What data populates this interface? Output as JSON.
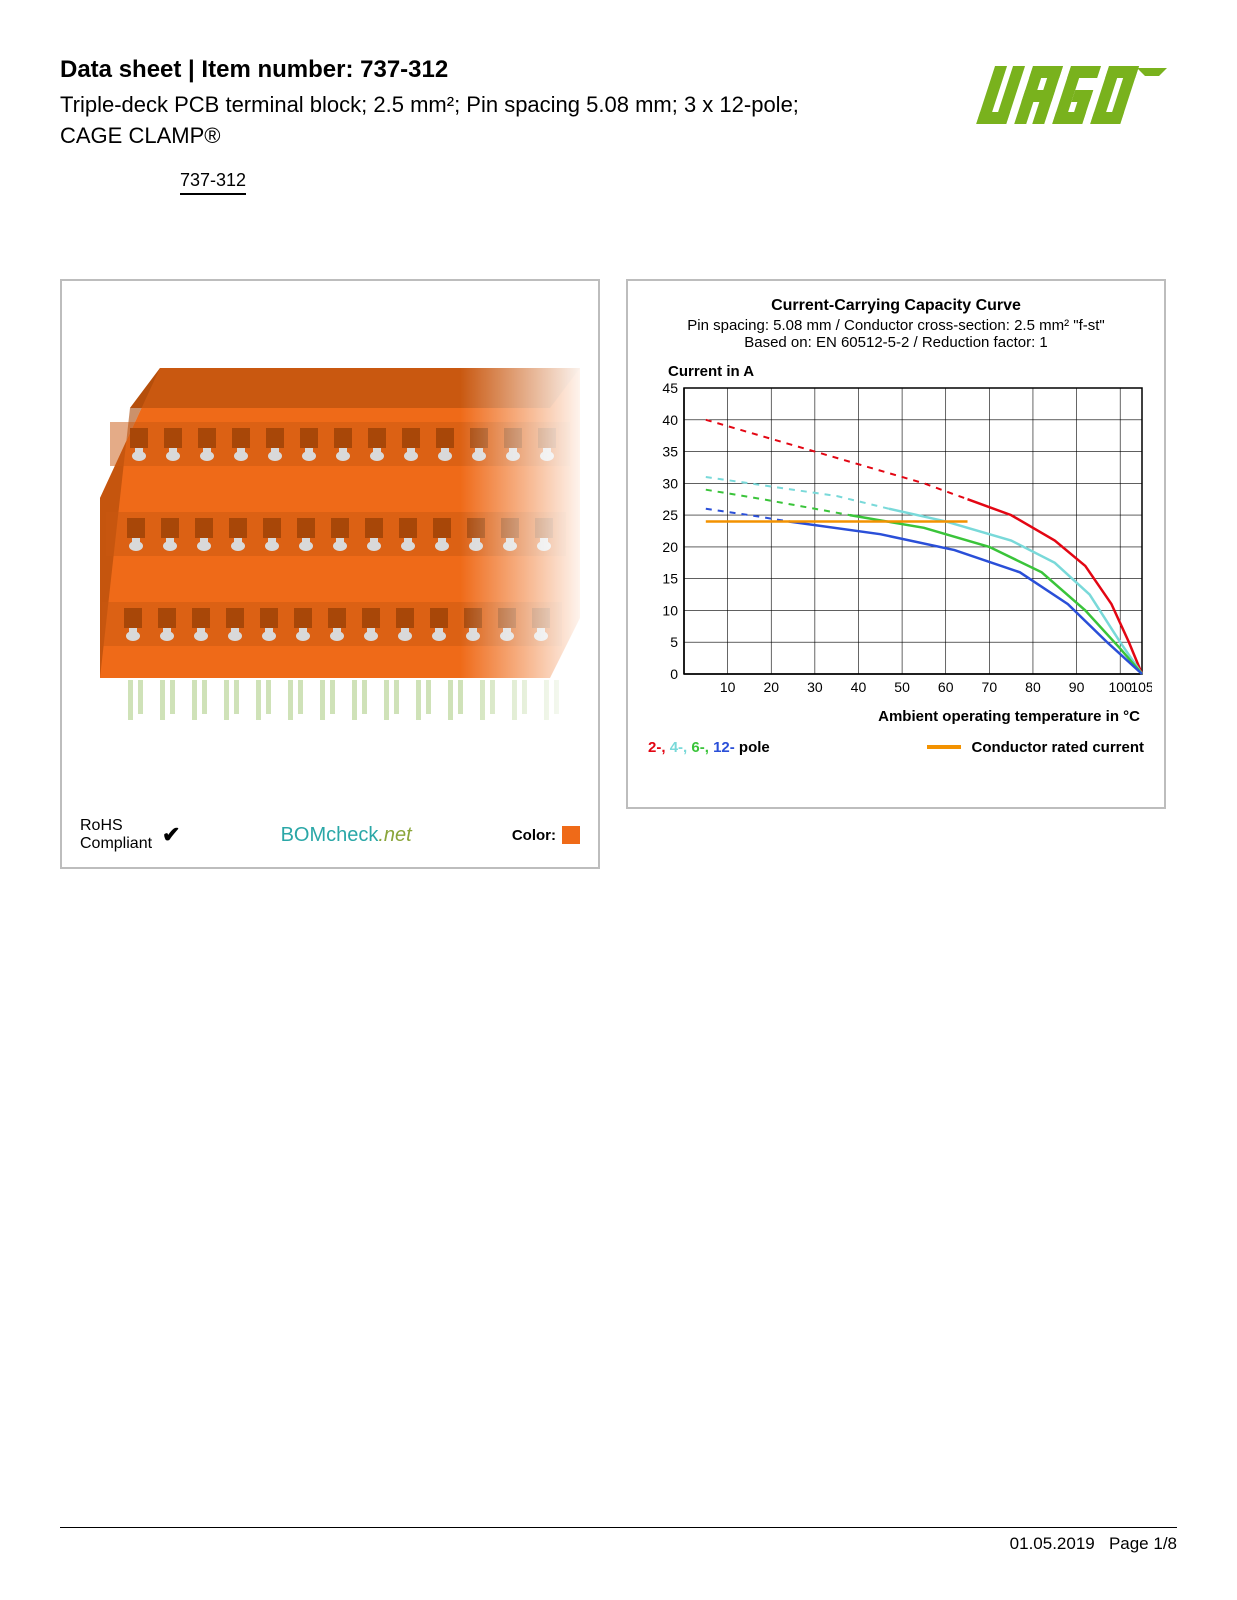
{
  "header": {
    "doc_title_prefix": "Data sheet  |  Item number: ",
    "item_number": "737-312",
    "subtitle_line1": "Triple-deck PCB terminal block; 2.5 mm²; Pin spacing 5.08 mm; 3 x 12-pole;",
    "subtitle_line2": "CAGE CLAMP®",
    "item_tag": "737-312",
    "logo_text": "WAGO",
    "logo_color": "#79b21d"
  },
  "product_panel": {
    "product_color": "#ef6a18",
    "rohs_line1": "RoHS",
    "rohs_line2": "Compliant",
    "checkmark": "✔",
    "bomcheck_main": "BOMcheck",
    "bomcheck_suffix": ".net",
    "color_label": "Color:",
    "color_swatch": "#ef6a18"
  },
  "chart": {
    "title": "Current-Carrying Capacity Curve",
    "sub1": "Pin spacing: 5.08 mm / Conductor cross-section: 2.5 mm² \"f-st\"",
    "sub2": "Based on: EN 60512-5-2 / Reduction factor: 1",
    "ylabel": "Current in A",
    "xlabel": "Ambient operating temperature in °C",
    "background_color": "#ffffff",
    "grid_color": "#000000",
    "axis_color": "#000000",
    "xlim": [
      0,
      105
    ],
    "ylim": [
      0,
      45
    ],
    "xticks": [
      0,
      10,
      20,
      30,
      40,
      50,
      60,
      70,
      80,
      90,
      100,
      105
    ],
    "xtick_labels": [
      "",
      "10",
      "20",
      "30",
      "40",
      "50",
      "60",
      "70",
      "80",
      "90",
      "100",
      "105"
    ],
    "yticks": [
      0,
      5,
      10,
      15,
      20,
      25,
      30,
      35,
      40,
      45
    ],
    "ytick_labels": [
      "0",
      "5",
      "10",
      "15",
      "20",
      "25",
      "30",
      "35",
      "40",
      "45"
    ],
    "line_width_solid": 2.5,
    "line_width_dashed": 2,
    "dash_pattern": "6,6",
    "series": [
      {
        "name": "2-pole-dashed",
        "color": "#e30613",
        "dashed": true,
        "points": [
          [
            5,
            40
          ],
          [
            20,
            37
          ],
          [
            40,
            33
          ],
          [
            55,
            30
          ],
          [
            65,
            27.5
          ]
        ]
      },
      {
        "name": "2-pole",
        "color": "#e30613",
        "dashed": false,
        "points": [
          [
            65,
            27.5
          ],
          [
            75,
            25
          ],
          [
            85,
            21
          ],
          [
            92,
            17
          ],
          [
            98,
            11
          ],
          [
            102,
            5
          ],
          [
            105,
            0
          ]
        ]
      },
      {
        "name": "4-pole-dashed",
        "color": "#79d9d9",
        "dashed": true,
        "points": [
          [
            5,
            31
          ],
          [
            20,
            29.5
          ],
          [
            35,
            28
          ],
          [
            47,
            26
          ]
        ]
      },
      {
        "name": "4-pole",
        "color": "#79d9d9",
        "dashed": false,
        "points": [
          [
            47,
            26
          ],
          [
            60,
            24
          ],
          [
            75,
            21
          ],
          [
            85,
            17.5
          ],
          [
            93,
            12.5
          ],
          [
            100,
            5
          ],
          [
            105,
            0
          ]
        ]
      },
      {
        "name": "6-pole-dashed",
        "color": "#3ac43a",
        "dashed": true,
        "points": [
          [
            5,
            29
          ],
          [
            18,
            27.5
          ],
          [
            30,
            26
          ],
          [
            38,
            25
          ]
        ]
      },
      {
        "name": "6-pole",
        "color": "#3ac43a",
        "dashed": false,
        "points": [
          [
            38,
            25
          ],
          [
            55,
            23
          ],
          [
            70,
            20
          ],
          [
            82,
            16
          ],
          [
            92,
            10
          ],
          [
            100,
            4
          ],
          [
            105,
            0
          ]
        ]
      },
      {
        "name": "12-pole-dashed",
        "color": "#2a4fd8",
        "dashed": true,
        "points": [
          [
            5,
            26
          ],
          [
            15,
            25
          ],
          [
            24,
            24
          ]
        ]
      },
      {
        "name": "12-pole",
        "color": "#2a4fd8",
        "dashed": false,
        "points": [
          [
            24,
            24
          ],
          [
            45,
            22
          ],
          [
            62,
            19.5
          ],
          [
            77,
            16
          ],
          [
            88,
            11
          ],
          [
            97,
            5
          ],
          [
            105,
            0
          ]
        ]
      },
      {
        "name": "rated-current",
        "color": "#f39200",
        "dashed": false,
        "points": [
          [
            5,
            24
          ],
          [
            30,
            24
          ],
          [
            50,
            24
          ],
          [
            65,
            24
          ]
        ]
      }
    ],
    "legend": {
      "poles": [
        {
          "label": "2-",
          "color": "#e30613"
        },
        {
          "label": "4-",
          "color": "#79d9d9"
        },
        {
          "label": "6-",
          "color": "#3ac43a"
        },
        {
          "label": "12-",
          "color": "#2a4fd8"
        }
      ],
      "poles_suffix": " pole",
      "rated_label": "Conductor rated current",
      "rated_color": "#f39200"
    }
  },
  "footer": {
    "date": "01.05.2019",
    "page": "Page 1/8"
  }
}
